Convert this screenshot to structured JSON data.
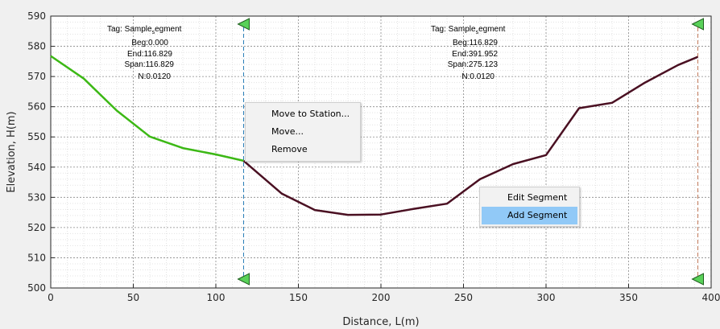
{
  "chart_data": {
    "type": "line",
    "xlabel": "Distance, L(m)",
    "ylabel": "Elevation, H(m)",
    "xlim": [
      0,
      400
    ],
    "ylim": [
      500,
      590
    ],
    "xticks": [
      "0",
      "50",
      "100",
      "150",
      "200",
      "250",
      "300",
      "350",
      "400"
    ],
    "yticks": [
      "500",
      "510",
      "520",
      "530",
      "540",
      "550",
      "560",
      "570",
      "580",
      "590"
    ],
    "grid": "minor dotted",
    "series": [
      {
        "color": "#3cb815",
        "x": [
          0,
          20,
          40,
          60,
          80,
          100,
          116.829
        ],
        "y": [
          576.8,
          569.3,
          558.7,
          550.1,
          546.3,
          544.2,
          542.1
        ]
      },
      {
        "color": "#4a1022",
        "x": [
          116.829,
          140,
          160,
          180,
          200,
          220,
          240,
          260,
          280,
          300,
          320,
          340,
          360,
          380,
          391.952
        ],
        "y": [
          542.1,
          531.2,
          525.8,
          524.2,
          524.3,
          526.2,
          527.9,
          536.0,
          541.0,
          544.0,
          559.5,
          561.3,
          568.0,
          573.8,
          576.5
        ]
      }
    ],
    "station_lines": [
      {
        "x": 116.829,
        "color": "#2b7fb8"
      },
      {
        "x": 391.952,
        "color": "#c0795a"
      }
    ],
    "marker_color": "#59d159",
    "segments": [
      {
        "tag_prefix": "Tag: Sample",
        "tag_sub": "s",
        "tag_suffix": "egment",
        "beg": "Beg:0.000",
        "end": "End:116.829",
        "span": "Span:116.829",
        "n": "N:0.0120"
      },
      {
        "tag_prefix": "Tag: Sample",
        "tag_sub": "s",
        "tag_suffix": "egment",
        "beg": "Beg:116.829",
        "end": "End:391.952",
        "span": "Span:275.123",
        "n": "N:0.0120"
      }
    ]
  },
  "context_menus": {
    "station": {
      "items": [
        "Move to Station...",
        "Move...",
        "Remove"
      ]
    },
    "segment": {
      "items": [
        "Edit Segment",
        "Add Segment"
      ],
      "highlighted": 1
    }
  }
}
